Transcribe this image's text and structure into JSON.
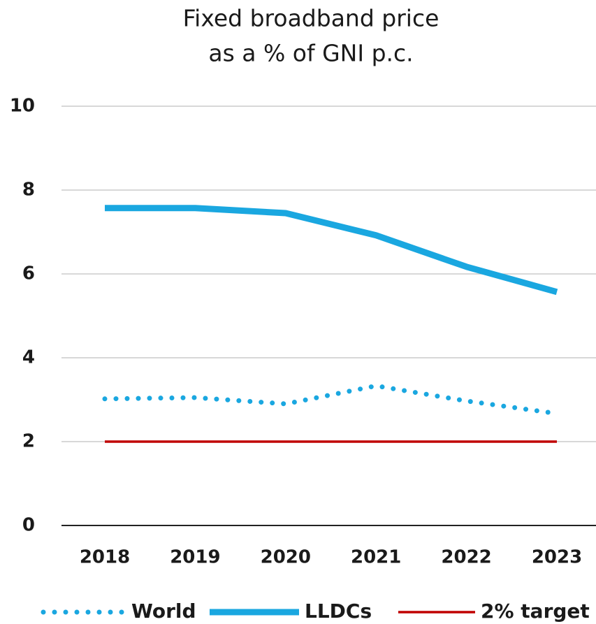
{
  "chart_data": {
    "type": "line",
    "title": [
      "Fixed broadband price",
      "as a % of GNI p.c."
    ],
    "categories": [
      "2018",
      "2019",
      "2020",
      "2021",
      "2022",
      "2023"
    ],
    "series": [
      {
        "name": "World",
        "color": "#1aa7e0",
        "style": "dotted",
        "values": [
          3.02,
          3.05,
          2.9,
          3.33,
          2.97,
          2.67
        ]
      },
      {
        "name": "LLDCs",
        "color": "#1aa7e0",
        "style": "solid",
        "values": [
          7.57,
          7.57,
          7.45,
          6.92,
          6.17,
          5.57
        ]
      },
      {
        "name": "2% target",
        "color": "#c00000",
        "style": "thin",
        "values": [
          2,
          2,
          2,
          2,
          2,
          2
        ]
      }
    ],
    "ylim": [
      0,
      10
    ],
    "yticks": [
      0,
      2,
      4,
      6,
      8,
      10
    ],
    "grid": true,
    "legend": "bottom"
  }
}
